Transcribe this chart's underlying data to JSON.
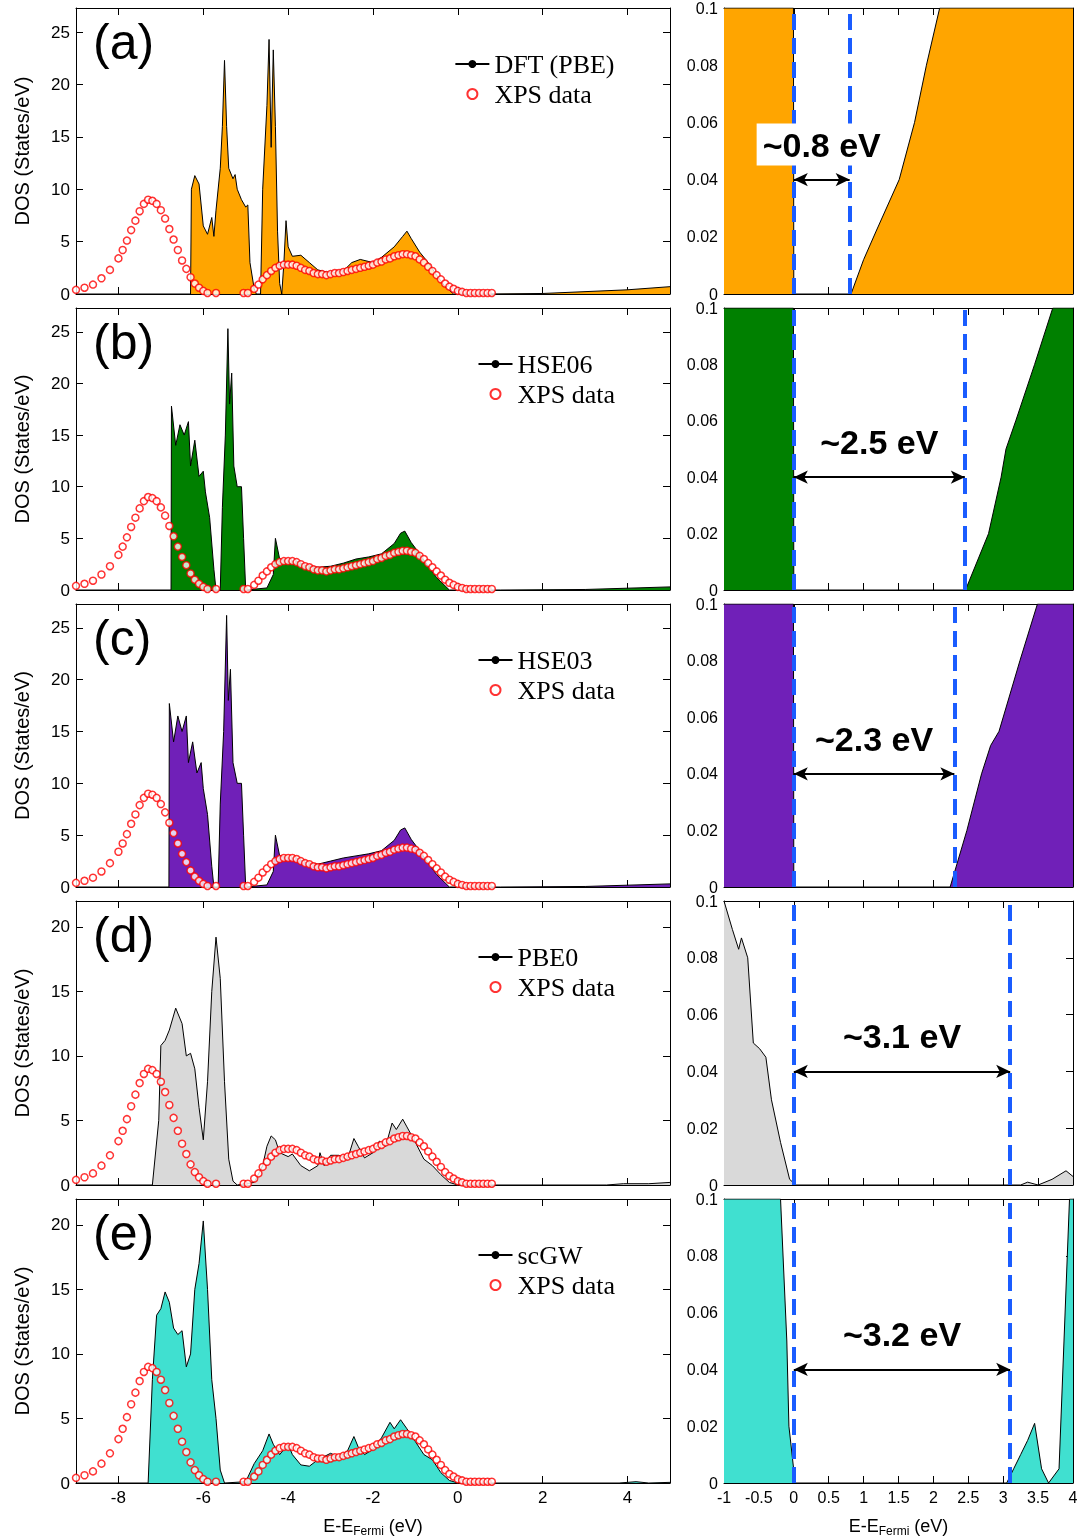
{
  "chart_data": [
    {
      "type": "area",
      "title": "(a)",
      "ylabel": "DOS (States/eV)",
      "xlim": [
        -9,
        5
      ],
      "xticks": [
        -8,
        -6,
        -4,
        -2,
        0,
        2,
        4
      ],
      "ylim": [
        0,
        27.3
      ],
      "yticks": [
        0,
        5,
        10,
        15,
        20,
        25
      ],
      "tick_labels": "y",
      "legend": "top right",
      "series": [
        {
          "name": "DFT (PBE)",
          "type": "area",
          "color": "#ffa500",
          "x": [
            -9,
            -6.3,
            -6.28,
            -6.2,
            -6.1,
            -6,
            -5.9,
            -5.8,
            -5.75,
            -5.7,
            -5.6,
            -5.55,
            -5.5,
            -5.45,
            -5.4,
            -5.3,
            -5.25,
            -5.2,
            -5.1,
            -5,
            -4.95,
            -4.9,
            -4.8,
            -4.75,
            -4.65,
            -4.6,
            -4.5,
            -4.45,
            -4.4,
            -4.35,
            -4.3,
            -4.25,
            -4.2,
            -4.15,
            -4.1,
            -4.05,
            -4,
            -3.9,
            -3.7,
            -3.5,
            -3.3,
            -3,
            -2.7,
            -2.5,
            -2.3,
            -2,
            -1.8,
            -1.5,
            -1.3,
            -1.2,
            -1.1,
            -0.9,
            -0.7,
            -0.5,
            -0.3,
            -0.1,
            0.5,
            2,
            4,
            5
          ],
          "values": [
            0,
            0,
            10,
            11.3,
            10.5,
            6.5,
            5.7,
            7.3,
            5.5,
            8,
            12,
            16,
            22.3,
            16,
            12,
            11,
            11.4,
            10,
            9,
            8.3,
            8.5,
            3,
            0.5,
            0,
            0,
            10,
            18,
            24.3,
            14,
            23.3,
            16,
            6,
            1,
            0,
            3,
            7,
            4.5,
            3.6,
            3.7,
            3,
            2.3,
            2,
            2.2,
            3,
            3.3,
            3,
            3.5,
            4.5,
            5.5,
            6,
            5.3,
            4,
            3,
            1.8,
            0.7,
            0,
            0,
            0.05,
            0.4,
            0.7
          ]
        },
        {
          "name": "XPS data",
          "type": "scatter",
          "color": "#ff0000",
          "marker": "circle",
          "x": [
            -9,
            -8.8,
            -8.6,
            -8.4,
            -8.2,
            -8,
            -7.9,
            -7.8,
            -7.7,
            -7.6,
            -7.5,
            -7.4,
            -7.3,
            -7.2,
            -7.1,
            -7,
            -6.9,
            -6.8,
            -6.7,
            -6.6,
            -6.5,
            -6.4,
            -6.3,
            -6.2,
            -6.1,
            -6,
            -5.9,
            -5.7,
            -5.05,
            -4.95,
            -4.8,
            -4.7,
            -4.6,
            -4.5,
            -4.4,
            -4.3,
            -4.2,
            -4.1,
            -4,
            -3.9,
            -3.8,
            -3.7,
            -3.6,
            -3.5,
            -3.4,
            -3.3,
            -3.2,
            -3.1,
            -3,
            -2.9,
            -2.8,
            -2.7,
            -2.6,
            -2.5,
            -2.4,
            -2.3,
            -2.2,
            -2.1,
            -2,
            -1.9,
            -1.8,
            -1.7,
            -1.6,
            -1.5,
            -1.4,
            -1.3,
            -1.2,
            -1.1,
            -1,
            -0.9,
            -0.8,
            -0.7,
            -0.6,
            -0.5,
            -0.4,
            -0.3,
            -0.2,
            -0.1,
            0,
            0.1,
            0.2,
            0.3,
            0.4,
            0.5,
            0.6,
            0.7,
            0.8
          ],
          "values": [
            0.4,
            0.6,
            0.9,
            1.5,
            2.3,
            3.4,
            4.2,
            5.1,
            6.1,
            7,
            7.9,
            8.6,
            9,
            8.9,
            8.6,
            8,
            7.2,
            6.2,
            5.2,
            4.2,
            3.2,
            2.4,
            1.6,
            1,
            0.6,
            0.3,
            0.1,
            0.1,
            0.1,
            0.1,
            0.5,
            0.9,
            1.4,
            1.8,
            2.2,
            2.5,
            2.7,
            2.8,
            2.8,
            2.8,
            2.7,
            2.5,
            2.3,
            2.2,
            2,
            1.9,
            1.9,
            1.8,
            1.9,
            2,
            2,
            2.1,
            2.2,
            2.3,
            2.4,
            2.5,
            2.6,
            2.7,
            2.8,
            3,
            3.1,
            3.3,
            3.4,
            3.6,
            3.7,
            3.8,
            3.8,
            3.7,
            3.6,
            3.3,
            3,
            2.6,
            2.2,
            1.8,
            1.4,
            1,
            0.7,
            0.5,
            0.3,
            0.2,
            0.1,
            0.1,
            0.1,
            0.1,
            0.1,
            0.1,
            0.1
          ]
        }
      ]
    },
    {
      "type": "area",
      "color": "#ffa500",
      "xlim": [
        -1,
        4
      ],
      "xticks": [
        -1,
        -0.5,
        0,
        0.5,
        1,
        1.5,
        2,
        2.5,
        3,
        3.5,
        4
      ],
      "ylim": [
        0,
        0.1
      ],
      "yticks": [
        0,
        0.02,
        0.04,
        0.06,
        0.08,
        0.1
      ],
      "tick_labels": "y",
      "x": [
        -1,
        -0.005,
        0,
        0.82,
        1,
        1.18,
        1.51,
        1.73,
        1.9,
        2.09,
        4
      ],
      "values": [
        0.1,
        0.1,
        0,
        0,
        0.012,
        0.022,
        0.04,
        0.06,
        0.08,
        0.1,
        0.1
      ],
      "ref_lines": [
        {
          "axis": "x",
          "value": 0,
          "color": "#1a5cff",
          "line_style": "dashed"
        },
        {
          "axis": "x",
          "value": 0.8,
          "color": "#1a5cff",
          "line_style": "dashed"
        }
      ],
      "annotations": [
        "~0.8 eV"
      ]
    },
    {
      "type": "area",
      "title": "(b)",
      "ylabel": "DOS (States/eV)",
      "xlim": [
        -9,
        5
      ],
      "xticks": [
        -8,
        -6,
        -4,
        -2,
        0,
        2,
        4
      ],
      "ylim": [
        0,
        27.3
      ],
      "yticks": [
        0,
        5,
        10,
        15,
        20,
        25
      ],
      "tick_labels": "y",
      "legend": "top right",
      "series": [
        {
          "name": "HSE06",
          "type": "area",
          "color": "#008000",
          "x": [
            -9,
            -6.76,
            -6.75,
            -6.65,
            -6.55,
            -6.45,
            -6.35,
            -6.3,
            -6.2,
            -6.1,
            -6,
            -5.95,
            -5.85,
            -5.75,
            -5.7,
            -5.6,
            -5.55,
            -5.48,
            -5.42,
            -5.38,
            -5.33,
            -5.28,
            -5.2,
            -5.1,
            -5.05,
            -5,
            -4.5,
            -4.35,
            -4.3,
            -4.2,
            -4,
            -3.8,
            -3.6,
            -3.3,
            -3,
            -2.7,
            -2.4,
            -2.1,
            -1.8,
            -1.5,
            -1.35,
            -1.25,
            -1.1,
            -0.9,
            -0.7,
            -0.5,
            -0.3,
            -0.2,
            1,
            3,
            5
          ],
          "values": [
            0,
            0,
            17.8,
            14,
            16,
            15,
            16.3,
            12,
            14.5,
            11,
            11.5,
            9.5,
            7,
            2,
            0,
            0,
            8,
            15,
            25.3,
            18,
            21,
            12,
            10,
            10,
            5,
            0,
            0.2,
            1.5,
            5,
            3,
            2.8,
            2.8,
            2.4,
            2.2,
            2.3,
            2.6,
            3,
            3.2,
            3.5,
            4.5,
            5.5,
            5.7,
            4.6,
            3.5,
            2.3,
            1.2,
            0.4,
            0,
            0,
            0.05,
            0.3
          ]
        },
        {
          "name": "XPS data",
          "type": "scatter",
          "color": "#ff0000",
          "marker": "circle",
          "x": [
            -9,
            -8.8,
            -8.6,
            -8.4,
            -8.2,
            -8,
            -7.9,
            -7.8,
            -7.7,
            -7.6,
            -7.5,
            -7.4,
            -7.3,
            -7.2,
            -7.1,
            -7,
            -6.9,
            -6.8,
            -6.7,
            -6.6,
            -6.5,
            -6.4,
            -6.3,
            -6.2,
            -6.1,
            -6,
            -5.9,
            -5.7,
            -5.05,
            -4.95,
            -4.8,
            -4.7,
            -4.6,
            -4.5,
            -4.4,
            -4.3,
            -4.2,
            -4.1,
            -4,
            -3.9,
            -3.8,
            -3.7,
            -3.6,
            -3.5,
            -3.4,
            -3.3,
            -3.2,
            -3.1,
            -3,
            -2.9,
            -2.8,
            -2.7,
            -2.6,
            -2.5,
            -2.4,
            -2.3,
            -2.2,
            -2.1,
            -2,
            -1.9,
            -1.8,
            -1.7,
            -1.6,
            -1.5,
            -1.4,
            -1.3,
            -1.2,
            -1.1,
            -1,
            -0.9,
            -0.8,
            -0.7,
            -0.6,
            -0.5,
            -0.4,
            -0.3,
            -0.2,
            -0.1,
            0,
            0.1,
            0.2,
            0.3,
            0.4,
            0.5,
            0.6,
            0.7,
            0.8
          ],
          "values": [
            0.4,
            0.6,
            0.9,
            1.5,
            2.3,
            3.4,
            4.2,
            5.1,
            6.1,
            7,
            7.9,
            8.6,
            9,
            8.9,
            8.6,
            8,
            7.2,
            6.2,
            5.2,
            4.2,
            3.2,
            2.4,
            1.6,
            1,
            0.6,
            0.3,
            0.1,
            0.1,
            0.1,
            0.1,
            0.5,
            0.9,
            1.4,
            1.8,
            2.2,
            2.5,
            2.7,
            2.8,
            2.8,
            2.8,
            2.7,
            2.5,
            2.3,
            2.2,
            2,
            1.9,
            1.9,
            1.8,
            1.9,
            2,
            2,
            2.1,
            2.2,
            2.3,
            2.4,
            2.5,
            2.6,
            2.7,
            2.8,
            3,
            3.1,
            3.3,
            3.4,
            3.6,
            3.7,
            3.8,
            3.8,
            3.7,
            3.6,
            3.3,
            3,
            2.6,
            2.2,
            1.8,
            1.4,
            1,
            0.7,
            0.5,
            0.3,
            0.2,
            0.1,
            0.1,
            0.1,
            0.1,
            0.1,
            0.1,
            0.1
          ]
        }
      ]
    },
    {
      "type": "area",
      "color": "#008000",
      "xlim": [
        -1,
        4
      ],
      "xticks": [
        -1,
        -0.5,
        0,
        0.5,
        1,
        1.5,
        2,
        2.5,
        3,
        3.5,
        4
      ],
      "ylim": [
        0,
        0.1
      ],
      "yticks": [
        0,
        0.02,
        0.04,
        0.06,
        0.08,
        0.1
      ],
      "tick_labels": "y",
      "x": [
        -1,
        -0.005,
        0,
        2.46,
        2.79,
        2.97,
        3.04,
        3.18,
        3.45,
        3.71,
        4
      ],
      "values": [
        0.1,
        0.1,
        0,
        0,
        0.02,
        0.04,
        0.05,
        0.06,
        0.08,
        0.1,
        0.1
      ],
      "ref_lines": [
        {
          "axis": "x",
          "value": 0,
          "color": "#1a5cff",
          "line_style": "dashed"
        },
        {
          "axis": "x",
          "value": 2.45,
          "color": "#1a5cff",
          "line_style": "dashed"
        }
      ],
      "annotations": [
        "~2.5 eV"
      ]
    },
    {
      "type": "area",
      "title": "(c)",
      "ylabel": "DOS (States/eV)",
      "xlim": [
        -9,
        5
      ],
      "xticks": [
        -8,
        -6,
        -4,
        -2,
        0,
        2,
        4
      ],
      "ylim": [
        0,
        27.3
      ],
      "yticks": [
        0,
        5,
        10,
        15,
        20,
        25
      ],
      "tick_labels": "y",
      "legend": "top right",
      "series": [
        {
          "name": "HSE03",
          "type": "area",
          "color": "#7020b8",
          "x": [
            -9,
            -6.81,
            -6.8,
            -6.7,
            -6.6,
            -6.5,
            -6.4,
            -6.35,
            -6.25,
            -6.15,
            -6.05,
            -6,
            -5.9,
            -5.8,
            -5.75,
            -5.65,
            -5.6,
            -5.52,
            -5.45,
            -5.41,
            -5.36,
            -5.3,
            -5.2,
            -5.1,
            -5.05,
            -5,
            -4.5,
            -4.35,
            -4.3,
            -4.2,
            -4,
            -3.8,
            -3.6,
            -3.3,
            -3,
            -2.7,
            -2.4,
            -2.1,
            -1.8,
            -1.5,
            -1.35,
            -1.25,
            -1.1,
            -0.9,
            -0.7,
            -0.5,
            -0.3,
            -0.2,
            1,
            3,
            5
          ],
          "values": [
            0,
            0,
            17.7,
            14,
            16.5,
            15,
            16.5,
            12,
            14,
            11,
            12,
            9.5,
            7,
            2,
            0,
            0,
            8,
            15,
            26.2,
            18,
            21,
            12,
            10,
            10,
            5,
            0,
            0.2,
            1.5,
            5,
            3,
            2.8,
            2.8,
            2.4,
            2.2,
            2.5,
            2.8,
            3,
            3.2,
            3.5,
            4.5,
            5.5,
            5.7,
            4.6,
            3.5,
            2.3,
            1.2,
            0.4,
            0,
            0,
            0.05,
            0.3
          ]
        },
        {
          "name": "XPS data",
          "type": "scatter",
          "color": "#ff0000",
          "marker": "circle",
          "x": [
            -9,
            -8.8,
            -8.6,
            -8.4,
            -8.2,
            -8,
            -7.9,
            -7.8,
            -7.7,
            -7.6,
            -7.5,
            -7.4,
            -7.3,
            -7.2,
            -7.1,
            -7,
            -6.9,
            -6.8,
            -6.7,
            -6.6,
            -6.5,
            -6.4,
            -6.3,
            -6.2,
            -6.1,
            -6,
            -5.9,
            -5.7,
            -5.05,
            -4.95,
            -4.8,
            -4.7,
            -4.6,
            -4.5,
            -4.4,
            -4.3,
            -4.2,
            -4.1,
            -4,
            -3.9,
            -3.8,
            -3.7,
            -3.6,
            -3.5,
            -3.4,
            -3.3,
            -3.2,
            -3.1,
            -3,
            -2.9,
            -2.8,
            -2.7,
            -2.6,
            -2.5,
            -2.4,
            -2.3,
            -2.2,
            -2.1,
            -2,
            -1.9,
            -1.8,
            -1.7,
            -1.6,
            -1.5,
            -1.4,
            -1.3,
            -1.2,
            -1.1,
            -1,
            -0.9,
            -0.8,
            -0.7,
            -0.6,
            -0.5,
            -0.4,
            -0.3,
            -0.2,
            -0.1,
            0,
            0.1,
            0.2,
            0.3,
            0.4,
            0.5,
            0.6,
            0.7,
            0.8
          ],
          "values": [
            0.4,
            0.6,
            0.9,
            1.5,
            2.3,
            3.4,
            4.2,
            5.1,
            6.1,
            7,
            7.9,
            8.6,
            9,
            8.9,
            8.6,
            8,
            7.2,
            6.2,
            5.2,
            4.2,
            3.2,
            2.4,
            1.6,
            1,
            0.6,
            0.3,
            0.1,
            0.1,
            0.1,
            0.1,
            0.5,
            0.9,
            1.4,
            1.8,
            2.2,
            2.5,
            2.7,
            2.8,
            2.8,
            2.8,
            2.7,
            2.5,
            2.3,
            2.2,
            2,
            1.9,
            1.9,
            1.8,
            1.9,
            2,
            2,
            2.1,
            2.2,
            2.3,
            2.4,
            2.5,
            2.6,
            2.7,
            2.8,
            3,
            3.1,
            3.3,
            3.4,
            3.6,
            3.7,
            3.8,
            3.8,
            3.7,
            3.6,
            3.3,
            3,
            2.6,
            2.2,
            1.8,
            1.4,
            1,
            0.7,
            0.5,
            0.3,
            0.2,
            0.1,
            0.1,
            0.1,
            0.1,
            0.1,
            0.1,
            0.1
          ]
        }
      ]
    },
    {
      "type": "area",
      "color": "#7020b8",
      "xlim": [
        -1,
        4
      ],
      "xticks": [
        -1,
        -0.5,
        0,
        0.5,
        1,
        1.5,
        2,
        2.5,
        3,
        3.5,
        4
      ],
      "ylim": [
        0,
        0.1
      ],
      "yticks": [
        0,
        0.02,
        0.04,
        0.06,
        0.08,
        0.1
      ],
      "tick_labels": "y",
      "x": [
        -1,
        -0.005,
        0,
        2.24,
        2.48,
        2.69,
        2.82,
        2.94,
        3.24,
        3.49,
        4
      ],
      "values": [
        0.1,
        0.1,
        0,
        0,
        0.02,
        0.04,
        0.05,
        0.055,
        0.08,
        0.1,
        0.1
      ],
      "ref_lines": [
        {
          "axis": "x",
          "value": 0,
          "color": "#1a5cff",
          "line_style": "dashed"
        },
        {
          "axis": "x",
          "value": 2.3,
          "color": "#1a5cff",
          "line_style": "dashed"
        }
      ],
      "annotations": [
        "~2.3 eV"
      ]
    },
    {
      "type": "area",
      "title": "(d)",
      "ylabel": "DOS (States/eV)",
      "xlim": [
        -9,
        5
      ],
      "xticks": [
        -8,
        -6,
        -4,
        -2,
        0,
        2,
        4
      ],
      "ylim": [
        0,
        22
      ],
      "yticks": [
        0,
        5,
        10,
        15,
        20
      ],
      "tick_labels": "y",
      "legend": "top right",
      "series": [
        {
          "name": "PBE0",
          "type": "area",
          "color": "#d9d9d9",
          "x": [
            -9,
            -7.2,
            -7.05,
            -7,
            -6.9,
            -6.8,
            -6.65,
            -6.5,
            -6.4,
            -6.3,
            -6.2,
            -6.1,
            -6,
            -5.9,
            -5.8,
            -5.7,
            -5.6,
            -5.5,
            -5.4,
            -5.3,
            -5.2,
            -4.8,
            -4.6,
            -4.5,
            -4.4,
            -4.3,
            -4.2,
            -4,
            -3.9,
            -3.7,
            -3.5,
            -3.3,
            -3.25,
            -3.15,
            -3,
            -2.8,
            -2.6,
            -2.45,
            -2.35,
            -2.2,
            -2,
            -1.85,
            -1.7,
            -1.55,
            -1.45,
            -1.3,
            -1.2,
            -1,
            -0.8,
            -0.6,
            -0.4,
            -0.2,
            0,
            3.5,
            3.9,
            4.5,
            5
          ],
          "values": [
            0,
            0,
            5,
            10.8,
            11.2,
            12,
            13.7,
            12.5,
            10,
            10.2,
            9,
            6,
            3.5,
            8,
            15,
            19.2,
            16,
            8,
            2,
            0.3,
            0,
            0.2,
            1.5,
            3,
            3.8,
            3.5,
            2.5,
            2.2,
            2.4,
            1.5,
            1.1,
            1.5,
            2.5,
            1.5,
            2.3,
            2.3,
            2,
            3.6,
            3,
            2.1,
            2.5,
            3.4,
            3,
            4.8,
            4.3,
            5.1,
            4.5,
            3.3,
            2,
            1.5,
            0.8,
            0.2,
            0,
            0,
            0.1,
            0.1,
            0.2
          ]
        },
        {
          "name": "XPS data",
          "type": "scatter",
          "color": "#ff0000",
          "marker": "circle",
          "x": [
            -9,
            -8.8,
            -8.6,
            -8.4,
            -8.2,
            -8,
            -7.9,
            -7.8,
            -7.7,
            -7.6,
            -7.5,
            -7.4,
            -7.3,
            -7.2,
            -7.1,
            -7,
            -6.9,
            -6.8,
            -6.7,
            -6.6,
            -6.5,
            -6.4,
            -6.3,
            -6.2,
            -6.1,
            -6,
            -5.9,
            -5.7,
            -5.05,
            -4.95,
            -4.8,
            -4.7,
            -4.6,
            -4.5,
            -4.4,
            -4.3,
            -4.2,
            -4.1,
            -4,
            -3.9,
            -3.8,
            -3.7,
            -3.6,
            -3.5,
            -3.4,
            -3.3,
            -3.2,
            -3.1,
            -3,
            -2.9,
            -2.8,
            -2.7,
            -2.6,
            -2.5,
            -2.4,
            -2.3,
            -2.2,
            -2.1,
            -2,
            -1.9,
            -1.8,
            -1.7,
            -1.6,
            -1.5,
            -1.4,
            -1.3,
            -1.2,
            -1.1,
            -1,
            -0.9,
            -0.8,
            -0.7,
            -0.6,
            -0.5,
            -0.4,
            -0.3,
            -0.2,
            -0.1,
            0,
            0.1,
            0.2,
            0.3,
            0.4,
            0.5,
            0.6,
            0.7,
            0.8
          ],
          "values": [
            0.4,
            0.6,
            0.9,
            1.5,
            2.3,
            3.4,
            4.2,
            5.1,
            6.1,
            7,
            7.9,
            8.6,
            9,
            8.9,
            8.6,
            8,
            7.2,
            6.2,
            5.2,
            4.2,
            3.2,
            2.4,
            1.6,
            1,
            0.6,
            0.3,
            0.1,
            0.1,
            0.1,
            0.1,
            0.5,
            0.9,
            1.4,
            1.8,
            2.2,
            2.5,
            2.7,
            2.8,
            2.8,
            2.8,
            2.7,
            2.5,
            2.3,
            2.2,
            2,
            1.9,
            1.9,
            1.8,
            1.9,
            2,
            2,
            2.1,
            2.2,
            2.3,
            2.4,
            2.5,
            2.6,
            2.7,
            2.8,
            3,
            3.1,
            3.3,
            3.4,
            3.6,
            3.7,
            3.8,
            3.8,
            3.7,
            3.6,
            3.3,
            3,
            2.6,
            2.2,
            1.8,
            1.4,
            1,
            0.7,
            0.5,
            0.3,
            0.2,
            0.1,
            0.1,
            0.1,
            0.1,
            0.1,
            0.1,
            0.1
          ]
        }
      ]
    },
    {
      "type": "area",
      "color": "#d9d9d9",
      "xlim": [
        -1,
        4
      ],
      "xticks": [
        -1,
        -0.5,
        0,
        0.5,
        1,
        1.5,
        2,
        2.5,
        3,
        3.5,
        4
      ],
      "ylim": [
        0,
        0.1
      ],
      "yticks": [
        0,
        0.02,
        0.04,
        0.06,
        0.08,
        0.1
      ],
      "tick_labels": "y",
      "x": [
        -1,
        -0.88,
        -0.79,
        -0.75,
        -0.66,
        -0.58,
        -0.49,
        -0.4,
        -0.32,
        -0.19,
        -0.06,
        0.03,
        3.25,
        3.35,
        3.5,
        3.7,
        3.9,
        4
      ],
      "values": [
        0.1,
        0.09,
        0.083,
        0.087,
        0.08,
        0.05,
        0.048,
        0.045,
        0.03,
        0.015,
        0.002,
        0,
        0,
        0.001,
        0,
        0.002,
        0.005,
        0.003
      ],
      "ref_lines": [
        {
          "axis": "x",
          "value": 0,
          "color": "#1a5cff",
          "line_style": "dashed"
        },
        {
          "axis": "x",
          "value": 3.1,
          "color": "#1a5cff",
          "line_style": "dashed"
        }
      ],
      "annotations": [
        "~3.1 eV"
      ]
    },
    {
      "type": "area",
      "title": "(e)",
      "ylabel": "DOS (States/eV)",
      "xlabel": "E-E$_{Fermi}$ (eV)",
      "xlim": [
        -9,
        5
      ],
      "xticks": [
        -8,
        -6,
        -4,
        -2,
        0,
        2,
        4
      ],
      "ylim": [
        0,
        22
      ],
      "yticks": [
        0,
        5,
        10,
        15,
        20
      ],
      "legend": "top right",
      "series": [
        {
          "name": "scGW",
          "type": "area",
          "color": "#40e0d0",
          "x": [
            -9,
            -7.3,
            -7.2,
            -7.1,
            -7,
            -6.9,
            -6.8,
            -6.7,
            -6.6,
            -6.5,
            -6.4,
            -6.3,
            -6.2,
            -6.1,
            -6,
            -5.9,
            -5.8,
            -5.7,
            -5.6,
            -5.5,
            -5,
            -4.8,
            -4.6,
            -4.45,
            -4.35,
            -4.2,
            -4,
            -3.9,
            -3.7,
            -3.5,
            -3.3,
            -3,
            -2.8,
            -2.6,
            -2.45,
            -2.35,
            -2.2,
            -2,
            -1.8,
            -1.6,
            -1.5,
            -1.35,
            -1.2,
            -1,
            -0.8,
            -0.6,
            -0.4,
            -0.2,
            0,
            3.8,
            4.2,
            4.5,
            5
          ],
          "values": [
            0,
            0,
            8,
            13,
            13.5,
            14.8,
            14,
            12,
            11.5,
            11.8,
            9,
            10,
            15,
            17,
            20.3,
            15,
            8,
            5,
            1,
            0,
            0.1,
            1.5,
            2.5,
            3.8,
            3,
            2.2,
            3,
            2.2,
            1.4,
            1.3,
            1.8,
            2.3,
            2,
            2.5,
            3.6,
            2.8,
            2.2,
            2.6,
            3.5,
            4.7,
            4.2,
            4.9,
            4.2,
            3.2,
            2.2,
            1.8,
            0.8,
            0.2,
            0,
            0,
            0.1,
            0,
            0.05
          ]
        },
        {
          "name": "XPS data",
          "type": "scatter",
          "color": "#ff0000",
          "marker": "circle",
          "x": [
            -9,
            -8.8,
            -8.6,
            -8.4,
            -8.2,
            -8,
            -7.9,
            -7.8,
            -7.7,
            -7.6,
            -7.5,
            -7.4,
            -7.3,
            -7.2,
            -7.1,
            -7,
            -6.9,
            -6.8,
            -6.7,
            -6.6,
            -6.5,
            -6.4,
            -6.3,
            -6.2,
            -6.1,
            -6,
            -5.9,
            -5.7,
            -5.05,
            -4.95,
            -4.8,
            -4.7,
            -4.6,
            -4.5,
            -4.4,
            -4.3,
            -4.2,
            -4.1,
            -4,
            -3.9,
            -3.8,
            -3.7,
            -3.6,
            -3.5,
            -3.4,
            -3.3,
            -3.2,
            -3.1,
            -3,
            -2.9,
            -2.8,
            -2.7,
            -2.6,
            -2.5,
            -2.4,
            -2.3,
            -2.2,
            -2.1,
            -2,
            -1.9,
            -1.8,
            -1.7,
            -1.6,
            -1.5,
            -1.4,
            -1.3,
            -1.2,
            -1.1,
            -1,
            -0.9,
            -0.8,
            -0.7,
            -0.6,
            -0.5,
            -0.4,
            -0.3,
            -0.2,
            -0.1,
            0,
            0.1,
            0.2,
            0.3,
            0.4,
            0.5,
            0.6,
            0.7,
            0.8
          ],
          "values": [
            0.4,
            0.6,
            0.9,
            1.5,
            2.3,
            3.4,
            4.2,
            5.1,
            6.1,
            7,
            7.9,
            8.6,
            9,
            8.9,
            8.6,
            8,
            7.2,
            6.2,
            5.2,
            4.2,
            3.2,
            2.4,
            1.6,
            1,
            0.6,
            0.3,
            0.1,
            0.1,
            0.1,
            0.1,
            0.5,
            0.9,
            1.4,
            1.8,
            2.2,
            2.5,
            2.7,
            2.8,
            2.8,
            2.8,
            2.7,
            2.5,
            2.3,
            2.2,
            2,
            1.9,
            1.9,
            1.8,
            1.9,
            2,
            2,
            2.1,
            2.2,
            2.3,
            2.4,
            2.5,
            2.6,
            2.7,
            2.8,
            3,
            3.1,
            3.3,
            3.4,
            3.6,
            3.7,
            3.8,
            3.8,
            3.7,
            3.6,
            3.3,
            3,
            2.6,
            2.2,
            1.8,
            1.4,
            1,
            0.7,
            0.5,
            0.3,
            0.2,
            0.1,
            0.1,
            0.1,
            0.1,
            0.1,
            0.1,
            0.1
          ]
        }
      ]
    },
    {
      "type": "area",
      "color": "#40e0d0",
      "xlabel": "E-E$_{Fermi}$ (eV)",
      "xlim": [
        -1,
        4
      ],
      "xticks": [
        -1,
        -0.5,
        0,
        0.5,
        1,
        1.5,
        2,
        2.5,
        3,
        3.5,
        4
      ],
      "ylim": [
        0,
        0.1
      ],
      "yticks": [
        0,
        0.02,
        0.04,
        0.06,
        0.08,
        0.1
      ],
      "x": [
        -1,
        -0.19,
        -0.1,
        -0.07,
        0.02,
        3.05,
        3.15,
        3.25,
        3.35,
        3.45,
        3.55,
        3.65,
        3.8,
        3.95,
        4
      ],
      "values": [
        0.1,
        0.1,
        0.05,
        0.02,
        0,
        0,
        0.005,
        0.01,
        0.015,
        0.021,
        0.005,
        0,
        0.005,
        0.1,
        0.1
      ],
      "ref_lines": [
        {
          "axis": "x",
          "value": 0,
          "color": "#1a5cff",
          "line_style": "dashed"
        },
        {
          "axis": "x",
          "value": 3.1,
          "color": "#1a5cff",
          "line_style": "dashed"
        }
      ],
      "annotations": [
        "~3.2 eV"
      ]
    }
  ]
}
